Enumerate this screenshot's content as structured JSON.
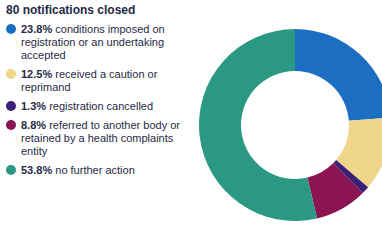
{
  "chart_data": {
    "type": "pie",
    "title": "80 notifications closed",
    "categories": [
      "conditions imposed on registration or an undertaking accepted",
      "received a caution or reprimand",
      "registration cancelled",
      "referred to another body or retained by a health complaints entity",
      "no further action"
    ],
    "values": [
      23.8,
      12.5,
      1.3,
      8.8,
      53.8
    ],
    "value_labels": [
      "23.8%",
      "12.5%",
      "1.3%",
      "8.8%",
      "53.8%"
    ],
    "colors": [
      "#1b6ec2",
      "#efd68c",
      "#3b2177",
      "#8c1452",
      "#2a9883"
    ],
    "legend": "left"
  }
}
